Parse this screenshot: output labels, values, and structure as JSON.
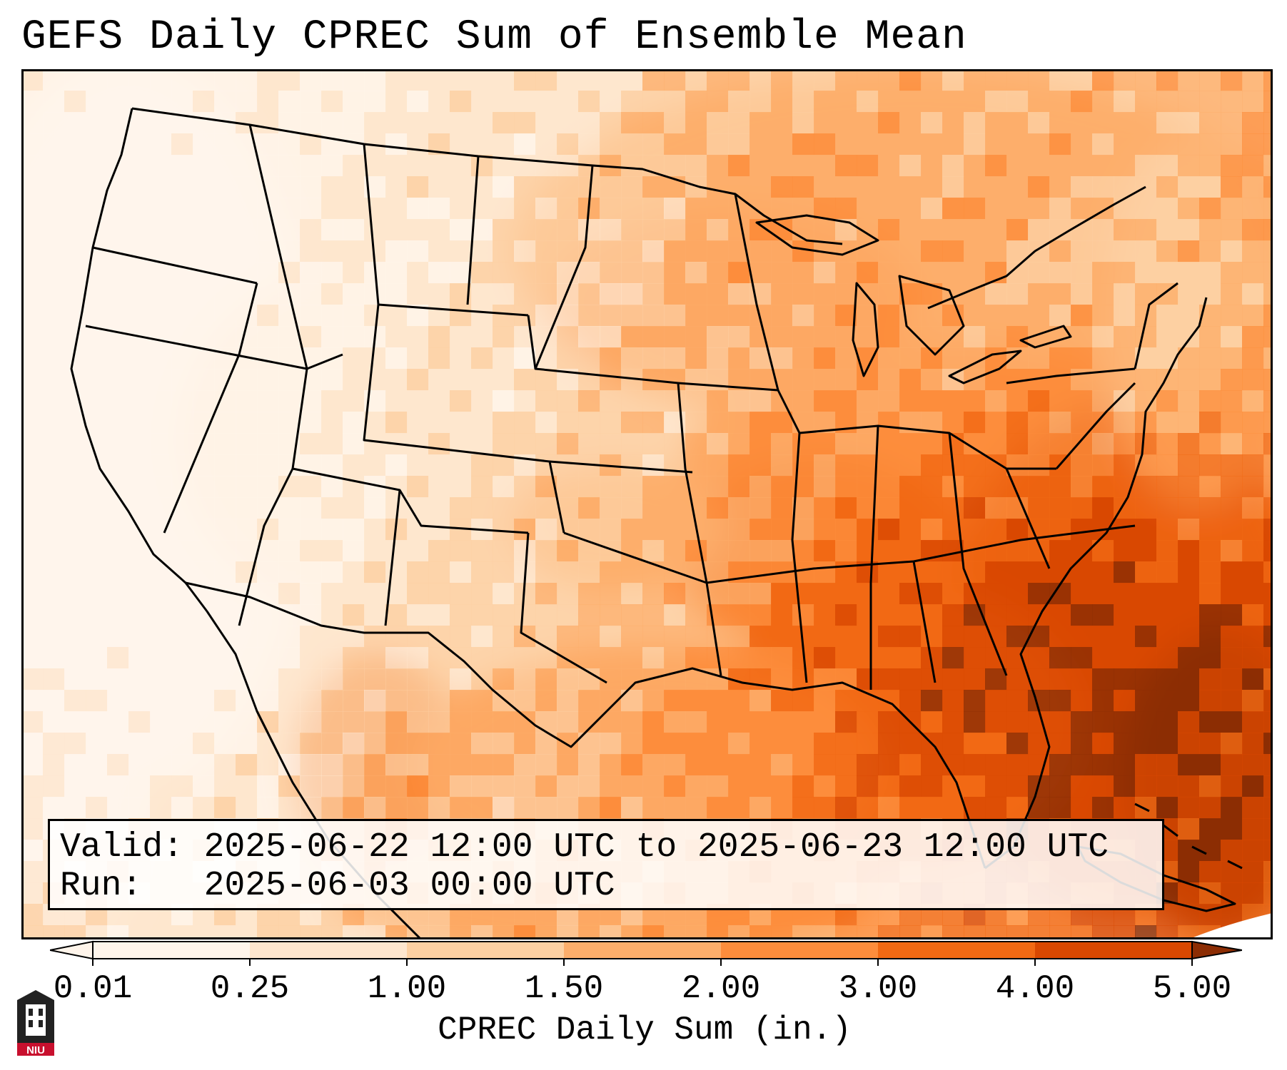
{
  "title": "GEFS Daily CPREC Sum of Ensemble Mean",
  "info": {
    "valid_label": "Valid:",
    "valid_value": "2025-06-22 12:00 UTC to 2025-06-23 12:00 UTC",
    "run_label": "Run:  ",
    "run_value": "2025-06-03 00:00 UTC"
  },
  "colorbar": {
    "label": "CPREC Daily Sum (in.)",
    "ticks": [
      "0.01",
      "0.25",
      "1.00",
      "1.50",
      "2.00",
      "3.00",
      "4.00",
      "5.00"
    ],
    "colors": [
      "#fff5eb",
      "#fee6ce",
      "#fdd0a2",
      "#fdae6b",
      "#fd8d3c",
      "#f16913",
      "#d94801",
      "#8c2d04"
    ],
    "extend": "both"
  },
  "logo": {
    "text": "NIU",
    "color": "#c8102e"
  },
  "map": {
    "projection": "lambert-conformal",
    "region": "CONUS",
    "land_border_color": "#000000"
  }
}
